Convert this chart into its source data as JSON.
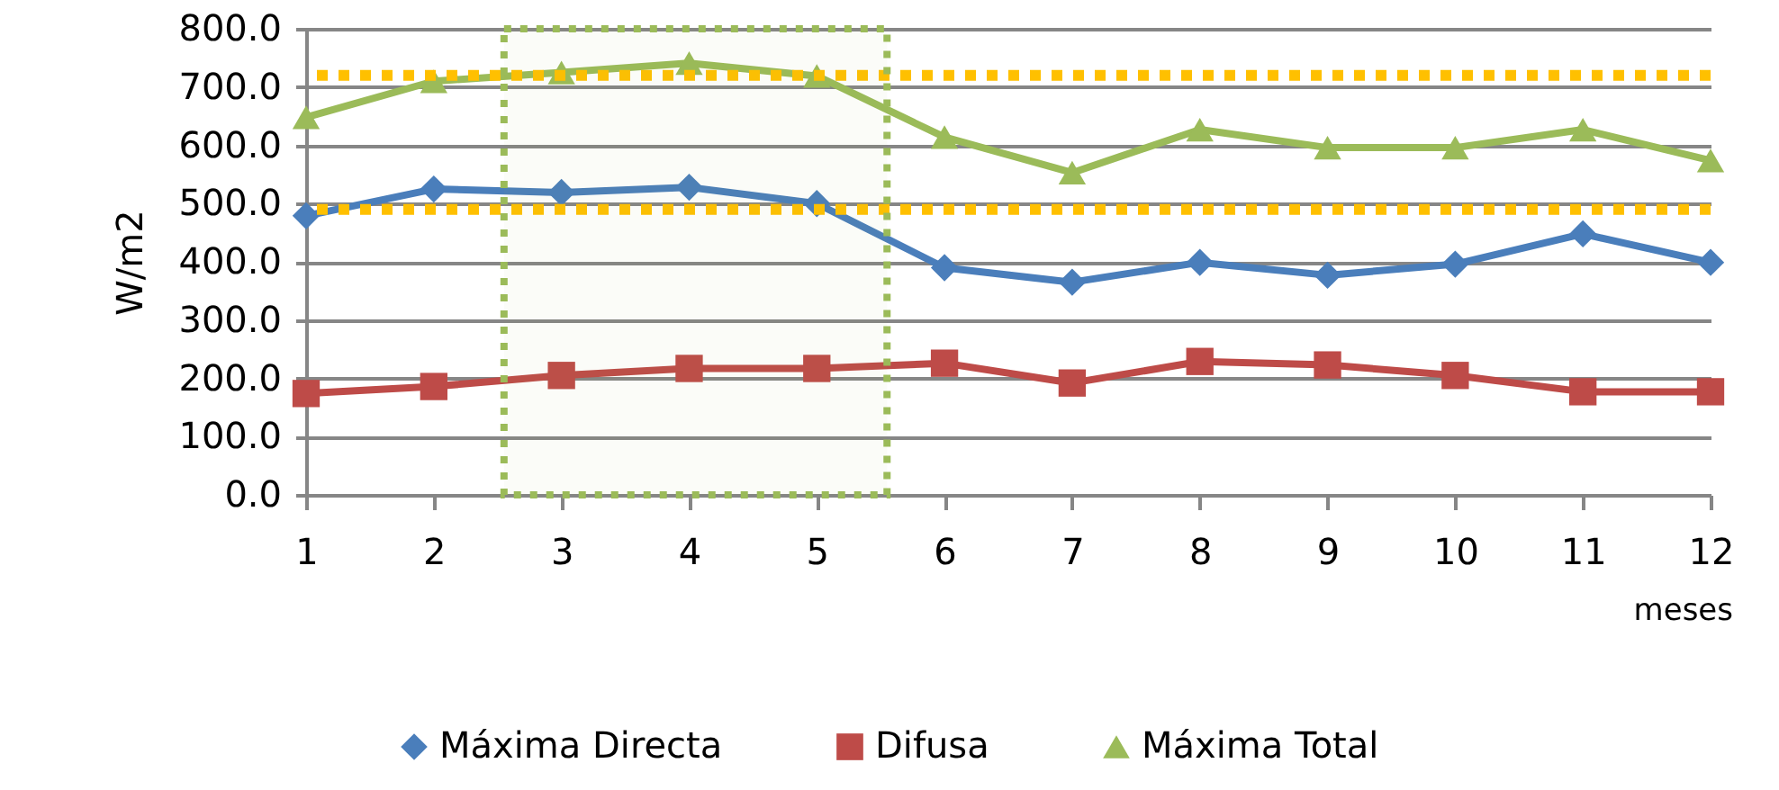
{
  "chart_data": {
    "type": "line",
    "xlabel": "meses",
    "ylabel": "W/m2",
    "x": [
      1,
      2,
      3,
      4,
      5,
      6,
      7,
      8,
      9,
      10,
      11,
      12
    ],
    "series": [
      {
        "name": "Máxima Directa",
        "color": "#4a7ebb",
        "marker": "diamond",
        "values": [
          479,
          525,
          519,
          528,
          500,
          390,
          365,
          399,
          377,
          396,
          448,
          399
        ]
      },
      {
        "name": "Difusa",
        "color": "#be4b48",
        "marker": "square",
        "values": [
          174,
          186,
          205,
          217,
          217,
          226,
          192,
          229,
          223,
          205,
          177,
          177
        ]
      },
      {
        "name": "Máxima Total",
        "color": "#9bbb59",
        "marker": "triangle",
        "values": [
          648,
          710,
          725,
          741,
          719,
          614,
          553,
          627,
          596,
          596,
          627,
          574
        ]
      }
    ],
    "xlim": [
      1,
      12
    ],
    "xticks": [
      1,
      2,
      3,
      4,
      5,
      6,
      7,
      8,
      9,
      10,
      11,
      12
    ],
    "ylim": [
      0,
      800
    ],
    "yticks": [
      {
        "value": 0,
        "label": "0.0"
      },
      {
        "value": 100,
        "label": "100.0"
      },
      {
        "value": 200,
        "label": "200.0"
      },
      {
        "value": 300,
        "label": "300.0"
      },
      {
        "value": 400,
        "label": "400.0"
      },
      {
        "value": 500,
        "label": "500.0"
      },
      {
        "value": 600,
        "label": "600.0"
      },
      {
        "value": 700,
        "label": "700.0"
      },
      {
        "value": 800,
        "label": "800.0"
      }
    ],
    "ref_lines": [
      {
        "axis": "y",
        "value": 720,
        "color": "#ffc000",
        "line_style": "dotted"
      },
      {
        "axis": "y",
        "value": 490,
        "color": "#ffc000",
        "line_style": "dotted"
      }
    ],
    "bands": [
      {
        "axis": "x",
        "from": 2.55,
        "to": 5.55,
        "color": "#9bbb59"
      }
    ],
    "grid": "y",
    "legend": "bottom",
    "line_style": "solid"
  }
}
